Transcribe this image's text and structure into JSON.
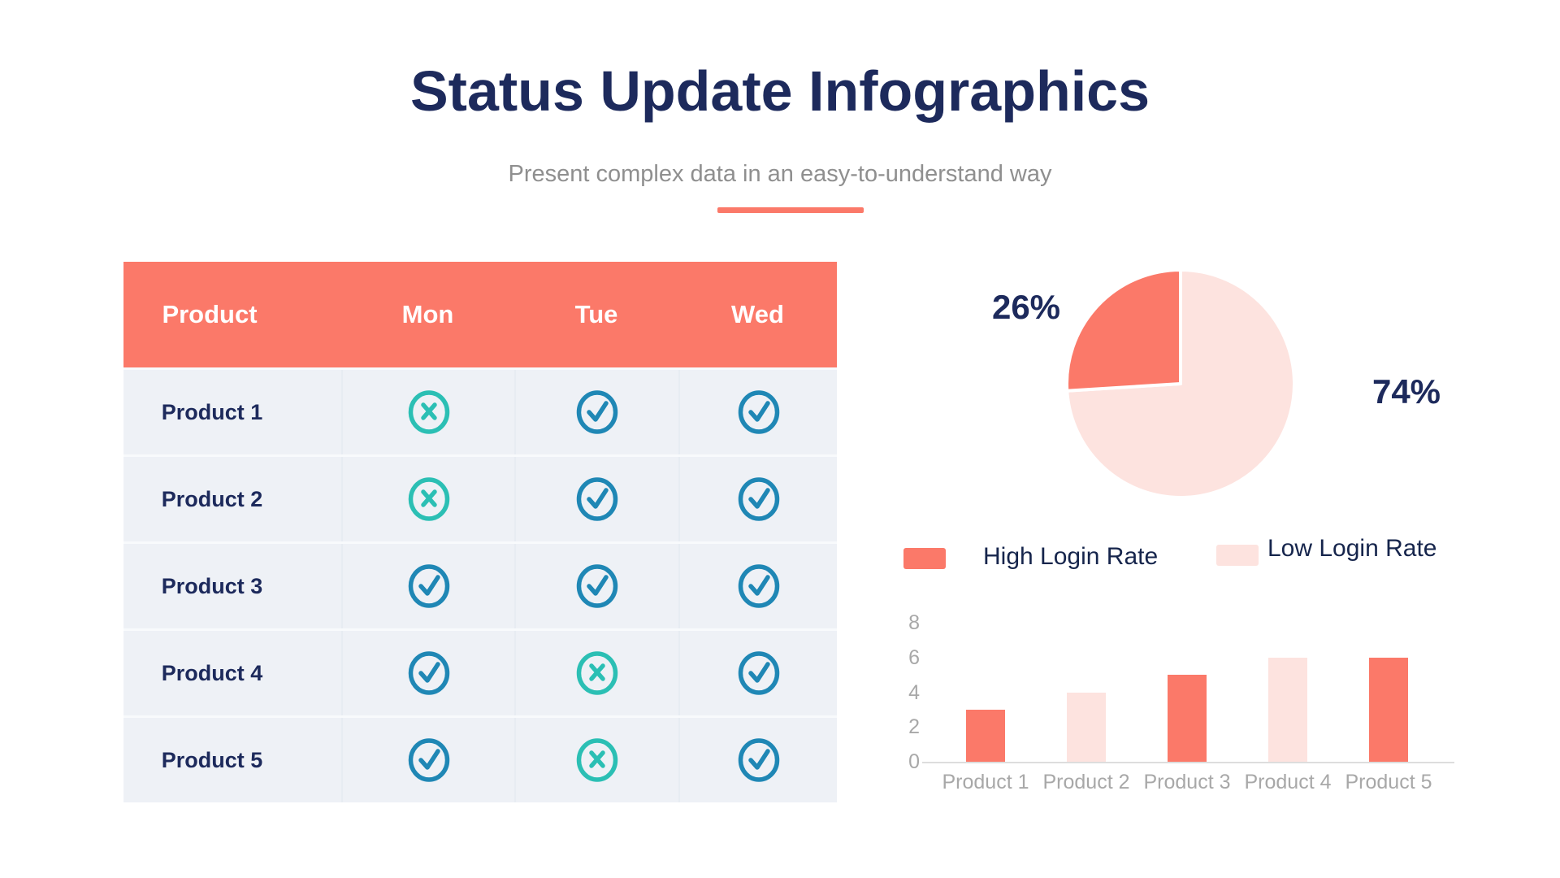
{
  "header": {
    "title": "Status Update Infographics",
    "subtitle": "Present complex data in an easy-to-understand way"
  },
  "colors": {
    "accent_coral": "#FB7969",
    "pale_pink": "#FDE3DF",
    "navy_text": "#1D2A5C",
    "table_row_bg": "#EEF1F6",
    "check_icon": "#1F87B5",
    "cross_icon": "#2BBFB4",
    "axis_gray": "#A8A8A8"
  },
  "table": {
    "columns": [
      "Product",
      "Mon",
      "Tue",
      "Wed"
    ],
    "rows": [
      {
        "label": "Product 1",
        "statuses": [
          "cross",
          "check",
          "check"
        ]
      },
      {
        "label": "Product 2",
        "statuses": [
          "cross",
          "check",
          "check"
        ]
      },
      {
        "label": "Product 3",
        "statuses": [
          "check",
          "check",
          "check"
        ]
      },
      {
        "label": "Product 4",
        "statuses": [
          "check",
          "cross",
          "check"
        ]
      },
      {
        "label": "Product 5",
        "statuses": [
          "check",
          "cross",
          "check"
        ]
      }
    ]
  },
  "legend": {
    "items": [
      {
        "label": "High Login Rate",
        "color": "#FB7969"
      },
      {
        "label": "Low Login Rate",
        "color": "#FDE3DF"
      }
    ]
  },
  "chart_data": [
    {
      "type": "pie",
      "labels": [
        "High Login Rate",
        "Low Login Rate"
      ],
      "values": [
        26,
        74
      ],
      "value_labels": [
        "26%",
        "74%"
      ],
      "colors": [
        "#FB7969",
        "#FDE3DF"
      ],
      "start": "top",
      "direction_of_first_slice": "counterclockwise",
      "legend_position": "below"
    },
    {
      "type": "bar",
      "categories": [
        "Product 1",
        "Product 2",
        "Product 3",
        "Product 4",
        "Product 5"
      ],
      "values": [
        3,
        4,
        5,
        6,
        6
      ],
      "bar_colors": [
        "#FB7969",
        "#FDE3DF",
        "#FB7969",
        "#FDE3DF",
        "#FB7969"
      ],
      "series_colors_meaning": [
        "High Login Rate",
        "Low Login Rate"
      ],
      "title": "",
      "xlabel": "",
      "ylabel": "",
      "yticks": [
        0,
        2,
        4,
        6,
        8
      ],
      "ylim": [
        0,
        8
      ],
      "grid": false,
      "legend_position": "above"
    }
  ]
}
